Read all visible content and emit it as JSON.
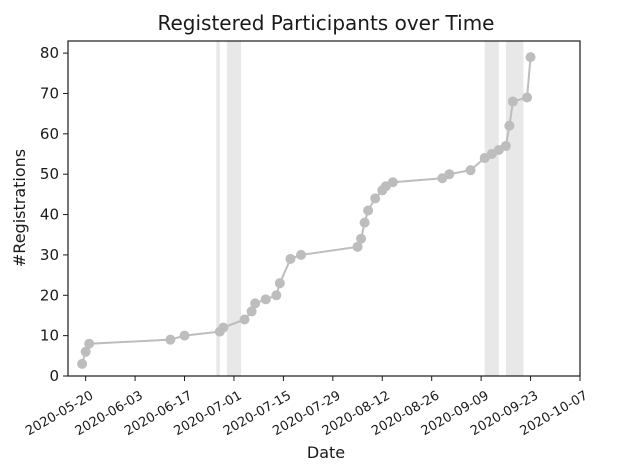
{
  "chart_data": {
    "type": "line",
    "title": "Registered Participants over Time",
    "xlabel": "Date",
    "ylabel": "#Registrations",
    "x_axis": {
      "type": "date",
      "range": [
        "2020-05-15",
        "2020-10-07"
      ],
      "ticks": [
        "2020-05-20",
        "2020-06-03",
        "2020-06-17",
        "2020-07-01",
        "2020-07-15",
        "2020-07-29",
        "2020-08-12",
        "2020-08-26",
        "2020-09-09",
        "2020-09-23",
        "2020-10-07"
      ]
    },
    "y_axis": {
      "range": [
        0,
        83
      ],
      "ticks": [
        0,
        10,
        20,
        30,
        40,
        50,
        60,
        70,
        80
      ]
    },
    "grid": false,
    "colors": {
      "line": "#bdbdbd",
      "marker": "#bdbdbd",
      "highlight_band": "#e8e8e8"
    },
    "highlight_bands": [
      {
        "start": "2020-06-26",
        "end": "2020-06-27"
      },
      {
        "start": "2020-06-29",
        "end": "2020-07-03"
      },
      {
        "start": "2020-09-10",
        "end": "2020-09-14"
      },
      {
        "start": "2020-09-16",
        "end": "2020-09-21"
      }
    ],
    "series": [
      {
        "points": [
          {
            "x": "2020-05-19",
            "y": 3
          },
          {
            "x": "2020-05-20",
            "y": 6
          },
          {
            "x": "2020-05-21",
            "y": 8
          },
          {
            "x": "2020-06-13",
            "y": 9
          },
          {
            "x": "2020-06-17",
            "y": 10
          },
          {
            "x": "2020-06-27",
            "y": 11
          },
          {
            "x": "2020-06-28",
            "y": 12
          },
          {
            "x": "2020-07-04",
            "y": 14
          },
          {
            "x": "2020-07-06",
            "y": 16
          },
          {
            "x": "2020-07-07",
            "y": 18
          },
          {
            "x": "2020-07-10",
            "y": 19
          },
          {
            "x": "2020-07-13",
            "y": 20
          },
          {
            "x": "2020-07-14",
            "y": 23
          },
          {
            "x": "2020-07-17",
            "y": 29
          },
          {
            "x": "2020-07-20",
            "y": 30
          },
          {
            "x": "2020-08-05",
            "y": 32
          },
          {
            "x": "2020-08-06",
            "y": 34
          },
          {
            "x": "2020-08-07",
            "y": 38
          },
          {
            "x": "2020-08-08",
            "y": 41
          },
          {
            "x": "2020-08-10",
            "y": 44
          },
          {
            "x": "2020-08-12",
            "y": 46
          },
          {
            "x": "2020-08-13",
            "y": 47
          },
          {
            "x": "2020-08-15",
            "y": 48
          },
          {
            "x": "2020-08-29",
            "y": 49
          },
          {
            "x": "2020-08-31",
            "y": 50
          },
          {
            "x": "2020-09-06",
            "y": 51
          },
          {
            "x": "2020-09-10",
            "y": 54
          },
          {
            "x": "2020-09-12",
            "y": 55
          },
          {
            "x": "2020-09-14",
            "y": 56
          },
          {
            "x": "2020-09-16",
            "y": 57
          },
          {
            "x": "2020-09-17",
            "y": 62
          },
          {
            "x": "2020-09-18",
            "y": 68
          },
          {
            "x": "2020-09-22",
            "y": 69
          },
          {
            "x": "2020-09-23",
            "y": 79
          }
        ]
      }
    ]
  }
}
